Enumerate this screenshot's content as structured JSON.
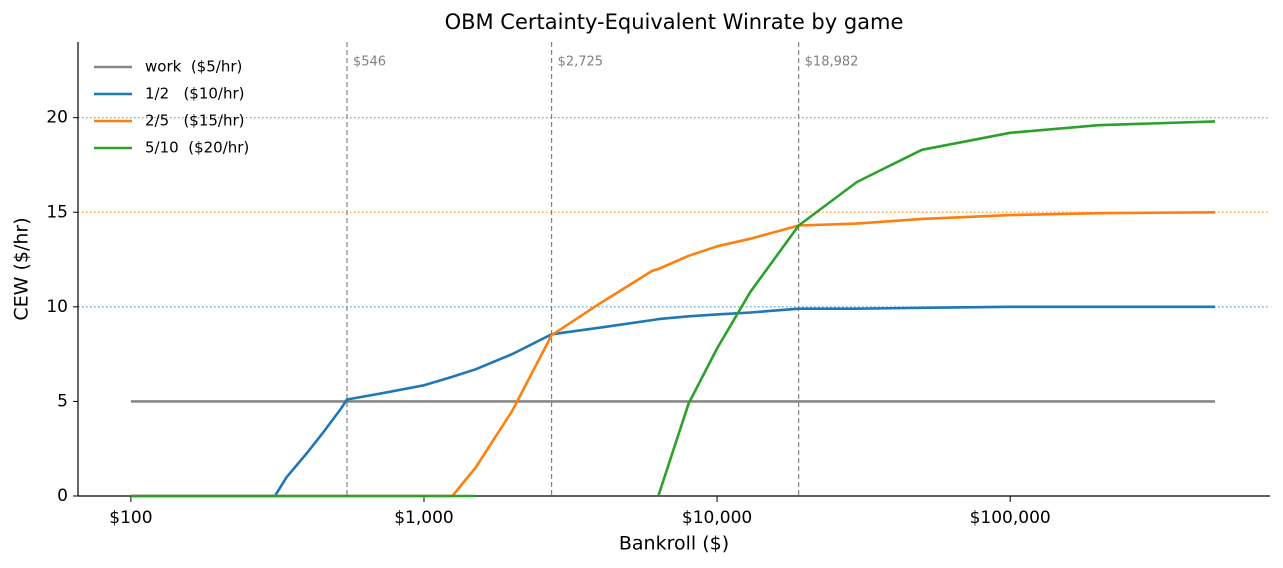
{
  "chart_data": {
    "type": "line",
    "title": "OBM Certainty-Equivalent Winrate by game",
    "x_label": "Bankroll ($)",
    "y_label": "CEW  ($/hr)",
    "x_scale": "log",
    "xlim": [
      66,
      770000
    ],
    "ylim": [
      0,
      24
    ],
    "xticks": [
      {
        "value": 100,
        "label": "$100"
      },
      {
        "value": 1000,
        "label": "$1,000"
      },
      {
        "value": 10000,
        "label": "$10,000"
      },
      {
        "value": 100000,
        "label": "$100,000"
      }
    ],
    "yticks": [
      0,
      5,
      10,
      15,
      20
    ],
    "legend": "upper left",
    "x": [
      100,
      200,
      310,
      340,
      400,
      450,
      520,
      546,
      700,
      1000,
      1250,
      1500,
      2000,
      2725,
      4000,
      6000,
      6300,
      8000,
      10000,
      13000,
      18982,
      30000,
      50000,
      100000,
      200000,
      500000
    ],
    "series": [
      {
        "name": "work  ($5/hr)",
        "color": "#888888",
        "values": [
          5,
          5,
          5,
          5,
          5,
          5,
          5,
          5,
          5,
          5,
          5,
          5,
          5,
          5,
          5,
          5,
          5,
          5,
          5,
          5,
          5,
          5,
          5,
          5,
          5,
          5
        ]
      },
      {
        "name": "1/2   ($10/hr)",
        "color": "#1f77b4",
        "values": [
          0,
          0,
          0,
          1.0,
          2.3,
          3.3,
          4.6,
          5.1,
          5.4,
          5.85,
          6.3,
          6.7,
          7.5,
          8.55,
          8.9,
          9.3,
          9.35,
          9.5,
          9.6,
          9.7,
          9.9,
          9.9,
          9.95,
          10,
          10,
          10
        ]
      },
      {
        "name": "2/5   ($15/hr)",
        "color": "#ff7f0e",
        "values": [
          0,
          0,
          0,
          0,
          0,
          0,
          0,
          0,
          0,
          0,
          0,
          1.5,
          4.5,
          8.5,
          10.2,
          11.9,
          12.0,
          12.7,
          13.2,
          13.6,
          14.3,
          14.4,
          14.65,
          14.85,
          14.95,
          15.0
        ]
      },
      {
        "name": "5/10  ($20/hr)",
        "color": "#2ca02c",
        "values": [
          0,
          0,
          0,
          0,
          0,
          0,
          0,
          0,
          0,
          0,
          0,
          0,
          null,
          null,
          null,
          null,
          0,
          4.9,
          7.8,
          10.8,
          14.3,
          16.6,
          18.3,
          19.2,
          19.6,
          19.8
        ]
      }
    ],
    "vlines": [
      {
        "x": 546,
        "label": "$546"
      },
      {
        "x": 2725,
        "label": "$2,725"
      },
      {
        "x": 18982,
        "label": "$18,982"
      }
    ],
    "hlines": [
      {
        "y": 10,
        "color": "#1f77b4"
      },
      {
        "y": 15,
        "color": "#ff7f0e"
      },
      {
        "y": 20,
        "color": "#2ca02c"
      }
    ]
  }
}
